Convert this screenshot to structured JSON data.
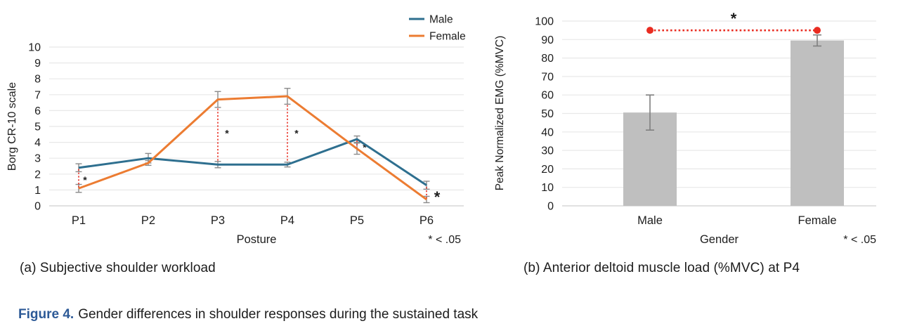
{
  "figure": {
    "caption_label": "Figure 4.",
    "caption_text": "Gender differences in shoulder responses during the sustained task",
    "subcaption_a": "(a) Subjective shoulder workload",
    "subcaption_b": "(b) Anterior deltoid muscle load (%MVC) at P4"
  },
  "colors": {
    "male": "#2e6f8f",
    "female": "#ec7c32",
    "significance": "#e92c21",
    "bar": "#bfbfbf",
    "error_bar": "#8a8a8a",
    "gridline": "#e8e8e8",
    "baseline": "#cfcfcf",
    "caption_accent": "#2d5a97"
  },
  "chart_data": [
    {
      "id": "line-chart",
      "type": "line",
      "title": "",
      "xlabel": "Posture",
      "ylabel": "Borg CR-10 scale",
      "categories": [
        "P1",
        "P2",
        "P3",
        "P4",
        "P5",
        "P6"
      ],
      "ylim": [
        0,
        10
      ],
      "yticks": [
        0,
        1,
        2,
        3,
        4,
        5,
        6,
        7,
        8,
        9,
        10
      ],
      "grid": true,
      "legend_position": "top-right",
      "series": [
        {
          "name": "Male",
          "color_key": "male",
          "values": [
            2.4,
            3.0,
            2.6,
            2.6,
            4.2,
            1.3
          ],
          "errors": [
            0.25,
            0.3,
            0.2,
            0.15,
            0.2,
            0.25
          ]
        },
        {
          "name": "Female",
          "color_key": "female",
          "values": [
            1.1,
            2.7,
            6.7,
            6.9,
            3.6,
            0.4
          ],
          "errors": [
            0.25,
            0.15,
            0.5,
            0.5,
            0.35,
            0.2
          ]
        }
      ],
      "significance": {
        "note": "* < .05",
        "marks": [
          {
            "category": "P1",
            "from": 1.15,
            "to": 2.35,
            "star_y": 1.65,
            "star_dx": 9,
            "star_size": 14
          },
          {
            "category": "P3",
            "from": 2.85,
            "to": 6.15,
            "star_y": 4.6,
            "star_dx": 13,
            "star_size": 14
          },
          {
            "category": "P4",
            "from": 2.85,
            "to": 6.35,
            "star_y": 4.6,
            "star_dx": 13,
            "star_size": 14
          },
          {
            "category": "P5",
            "from": 3.6,
            "to": 4.15,
            "star_y": 3.7,
            "star_dx": 11,
            "star_size": 14
          },
          {
            "category": "P6",
            "from": 0.45,
            "to": 1.2,
            "star_y": 0.6,
            "star_dx": 15,
            "star_size": 22
          }
        ]
      }
    },
    {
      "id": "bar-chart",
      "type": "bar",
      "title": "",
      "xlabel": "Gender",
      "ylabel": "Peak Normalized EMG (%MVC)",
      "categories": [
        "Male",
        "Female"
      ],
      "ylim": [
        0,
        100
      ],
      "yticks": [
        0,
        10,
        20,
        30,
        40,
        50,
        60,
        70,
        80,
        90,
        100
      ],
      "grid": true,
      "values": [
        50.5,
        89.5
      ],
      "error_low": [
        41,
        86.5
      ],
      "error_high": [
        60,
        92.5
      ],
      "significance": {
        "note": "* < .05",
        "bracket_y": 95,
        "star": "*"
      }
    }
  ]
}
